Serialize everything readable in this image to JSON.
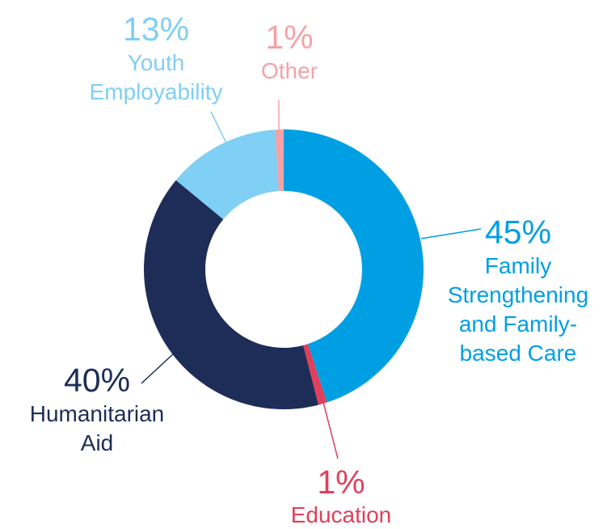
{
  "chart_data": {
    "type": "pie",
    "variant": "donut",
    "slices": [
      {
        "label": "Family Strengthening and Family-based Care",
        "value": 45,
        "percent_label": "45%",
        "label_lines": [
          "Family",
          "Strengthening",
          "and Family-",
          "based Care"
        ],
        "color": "#009FE3"
      },
      {
        "label": "Education",
        "value": 1,
        "percent_label": "1%",
        "label_lines": [
          "Education"
        ],
        "color": "#E0405B"
      },
      {
        "label": "Humanitarian Aid",
        "value": 40,
        "percent_label": "40%",
        "label_lines": [
          "Humanitarian",
          "Aid"
        ],
        "color": "#1D2D57"
      },
      {
        "label": "Youth Employability",
        "value": 13,
        "percent_label": "13%",
        "label_lines": [
          "Youth",
          "Employability"
        ],
        "color": "#80CFF5"
      },
      {
        "label": "Other",
        "value": 1,
        "percent_label": "1%",
        "label_lines": [
          "Other"
        ],
        "color": "#F2A3A8"
      }
    ],
    "start": "top",
    "direction": "clockwise",
    "legend": "none"
  }
}
